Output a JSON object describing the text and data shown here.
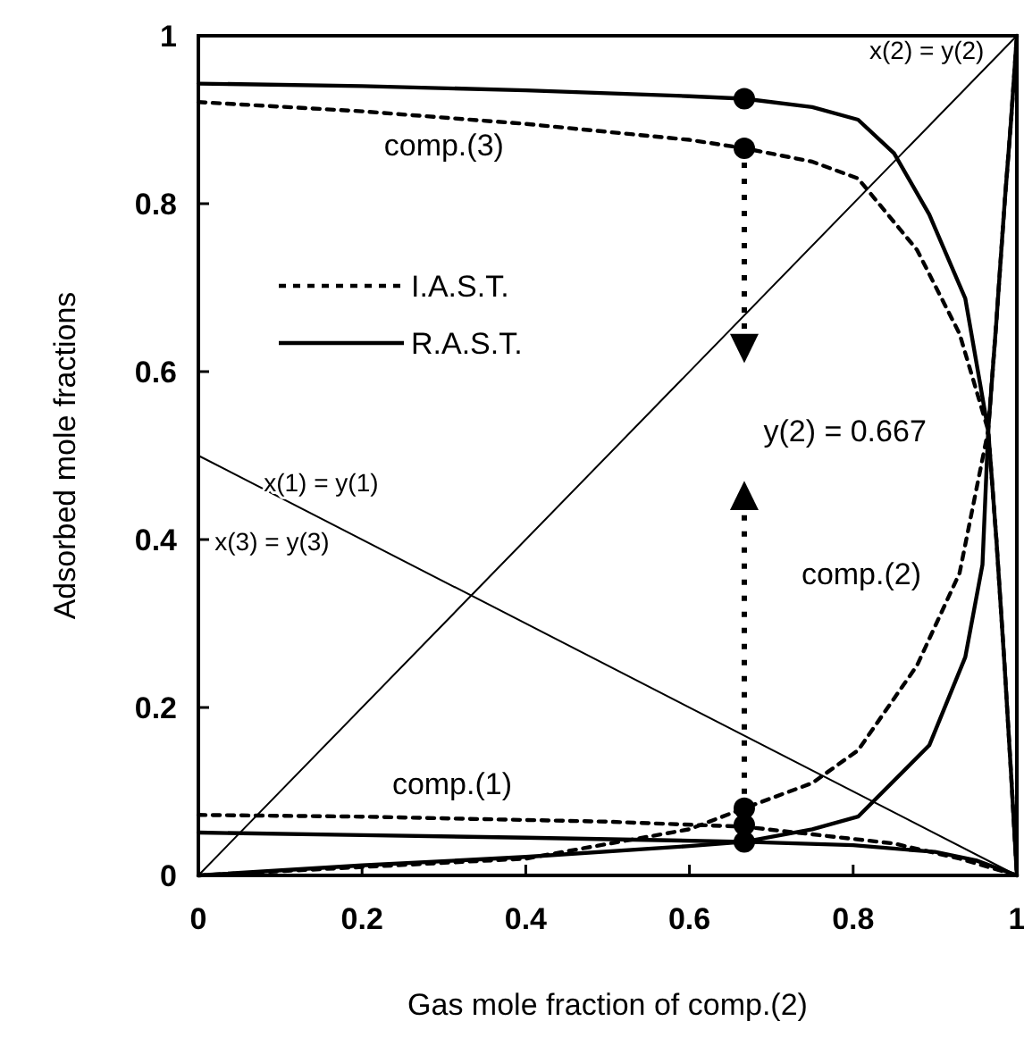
{
  "chart_data": {
    "type": "line",
    "xlabel": "Gas mole fraction of comp.(2)",
    "ylabel": "Adsorbed mole fractions",
    "xlim": [
      0,
      1
    ],
    "ylim": [
      0,
      1
    ],
    "xticks": [
      0,
      0.2,
      0.4,
      0.6,
      0.8,
      1
    ],
    "yticks": [
      0,
      0.2,
      0.4,
      0.6,
      0.8,
      1
    ],
    "grid": false,
    "legend": "top left",
    "marker": "none",
    "series": [
      {
        "color": "#000000",
        "x": [
          0,
          1
        ],
        "values": [
          0,
          1
        ],
        "line_style": "solid"
      },
      {
        "color": "#000000",
        "x": [
          0,
          1
        ],
        "values": [
          0.5,
          0
        ],
        "line_style": "solid"
      },
      {
        "name": "I.A.S.T.",
        "color": "#000000",
        "line_style": "dashed",
        "x": [
          0,
          0.2,
          0.4,
          0.6,
          0.667,
          0.75,
          0.806,
          0.878,
          0.93,
          0.965,
          0.975,
          0.985,
          0.993,
          1
        ],
        "values": [
          0.921,
          0.91,
          0.895,
          0.876,
          0.866,
          0.85,
          0.83,
          0.745,
          0.645,
          0.53,
          0.4,
          0.25,
          0.12,
          0
        ]
      },
      {
        "name": "R.A.S.T.",
        "color": "#000000",
        "line_style": "solid",
        "x": [
          0,
          0.2,
          0.4,
          0.6,
          0.667,
          0.75,
          0.806,
          0.85,
          0.893,
          0.937,
          0.965,
          0.975,
          0.985,
          0.993,
          1
        ],
        "values": [
          0.943,
          0.94,
          0.935,
          0.928,
          0.925,
          0.915,
          0.9,
          0.86,
          0.787,
          0.687,
          0.53,
          0.4,
          0.25,
          0.12,
          0
        ]
      },
      {
        "color": "#000000",
        "line_style": "solid",
        "x": [
          0,
          0.2,
          0.4,
          0.6,
          0.667,
          0.75,
          0.806,
          0.893,
          0.937,
          0.958,
          0.965,
          0.975,
          0.985,
          0.993,
          1
        ],
        "values": [
          0,
          0.012,
          0.022,
          0.035,
          0.04,
          0.055,
          0.07,
          0.155,
          0.26,
          0.37,
          0.53,
          0.66,
          0.8,
          0.9,
          1
        ]
      },
      {
        "color": "#000000",
        "line_style": "dashed",
        "x": [
          0,
          0.2,
          0.4,
          0.6,
          0.667,
          0.75,
          0.806,
          0.878,
          0.93,
          0.965,
          0.975,
          0.985,
          0.993,
          1
        ],
        "values": [
          0,
          0.01,
          0.02,
          0.055,
          0.08,
          0.11,
          0.149,
          0.25,
          0.36,
          0.53,
          0.66,
          0.8,
          0.9,
          1
        ]
      },
      {
        "color": "#000000",
        "line_style": "solid",
        "x": [
          0,
          0.2,
          0.4,
          0.667,
          0.8,
          0.9,
          0.95,
          1
        ],
        "values": [
          0.051,
          0.048,
          0.045,
          0.04,
          0.036,
          0.028,
          0.018,
          0
        ]
      },
      {
        "color": "#000000",
        "line_style": "dashed",
        "x": [
          0,
          0.2,
          0.5,
          0.667,
          0.85,
          0.93,
          1
        ],
        "values": [
          0.072,
          0.07,
          0.064,
          0.058,
          0.038,
          0.02,
          0
        ]
      },
      {
        "type": "scatter",
        "color": "#000000",
        "marker": "circle",
        "x": [
          0.667,
          0.667,
          0.667,
          0.667,
          0.667
        ],
        "values": [
          0.925,
          0.866,
          0.08,
          0.06,
          0.04
        ]
      }
    ],
    "annotations": [
      "x(2) = y(2)",
      "comp.(3)",
      "y(2) = 0.667",
      "comp.(2)",
      "comp.(1)",
      "x(1) = y(1)",
      "x(3) = y(3)"
    ]
  }
}
